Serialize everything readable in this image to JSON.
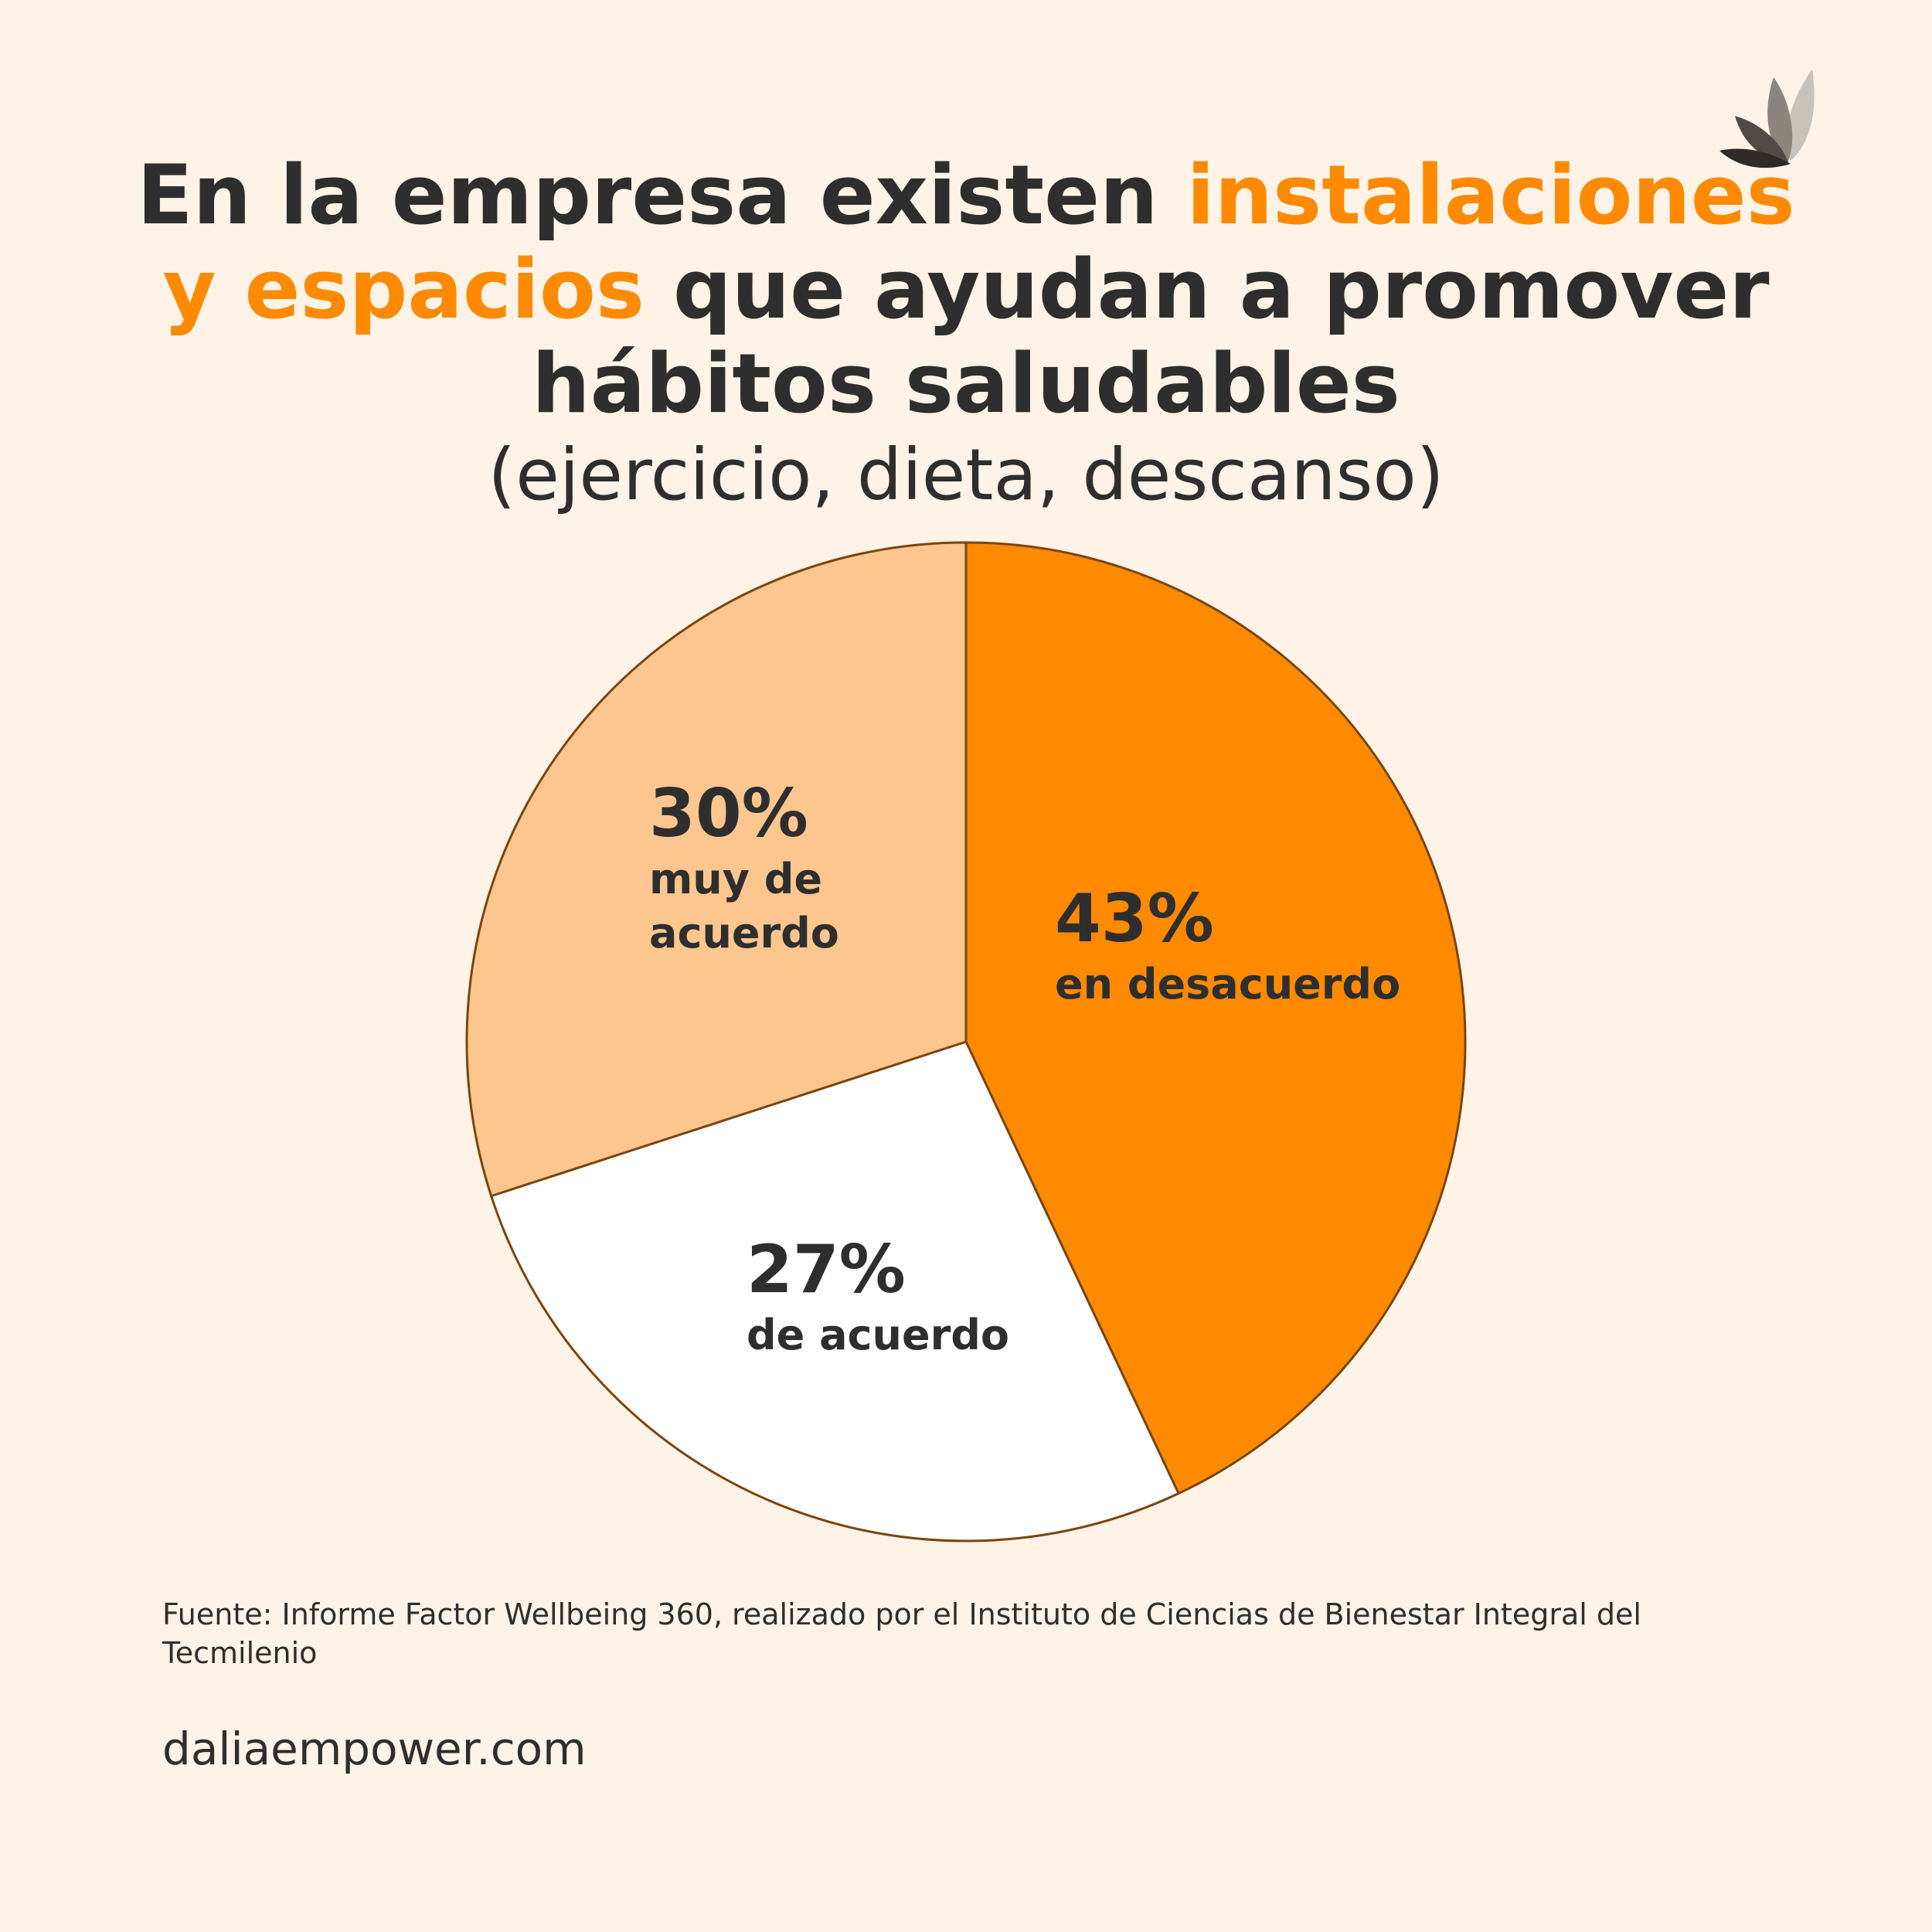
{
  "title": {
    "part1": "En la empresa existen ",
    "highlight1": "instalaciones",
    "highlight2": "y espacios",
    "part2": " que ayudan a promover",
    "part3": "hábitos saludables"
  },
  "subtitle": "(ejercicio, dieta, descanso)",
  "colors": {
    "background": "#FEF3E6",
    "text": "#2E2E2E",
    "accent": "#FF8A00",
    "stroke": "#7A4510"
  },
  "logo": {
    "icon": "lotus-leaf-icon"
  },
  "chart_data": {
    "type": "pie",
    "slices": [
      {
        "value": 43,
        "pct_label": "43%",
        "label": [
          "en desacuerdo"
        ],
        "color": "#FF8A00"
      },
      {
        "value": 27,
        "pct_label": "27%",
        "label": [
          "de acuerdo"
        ],
        "color": "#FFFFFF"
      },
      {
        "value": 30,
        "pct_label": "30%",
        "label": [
          "muy de",
          "acuerdo"
        ],
        "color": "#FEC68F"
      }
    ],
    "start_angle_deg": 0,
    "direction": "clockwise"
  },
  "source": " Fuente: Informe Factor Wellbeing 360, realizado por el Instituto de Ciencias de Bienestar Integral del Tecmilenio",
  "website": "daliaempower.com"
}
